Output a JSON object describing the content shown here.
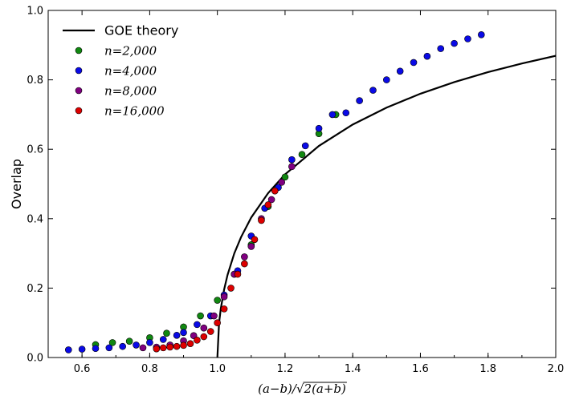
{
  "chart_data": {
    "type": "scatter",
    "title": "",
    "xlabel": "(a−b)/√2(a+b)",
    "ylabel": "Overlap",
    "xlim": [
      0.5,
      2.0
    ],
    "ylim": [
      0.0,
      1.0
    ],
    "xticks": [
      "0.6",
      "0.8",
      "1.0",
      "1.2",
      "1.4",
      "1.6",
      "1.8",
      "2.0"
    ],
    "yticks": [
      "0.0",
      "0.2",
      "0.4",
      "0.6",
      "0.8",
      "1.0"
    ],
    "legend_position": "top-left",
    "grid": false,
    "series": [
      {
        "name": "GOE theory",
        "kind": "line",
        "color": "#000000",
        "x": [
          1.0,
          1.005,
          1.01,
          1.02,
          1.03,
          1.05,
          1.07,
          1.1,
          1.15,
          1.2,
          1.3,
          1.4,
          1.5,
          1.6,
          1.7,
          1.8,
          1.9,
          2.0
        ],
        "y": [
          0.0,
          0.0995,
          0.1401,
          0.1961,
          0.2378,
          0.3,
          0.3469,
          0.4033,
          0.4736,
          0.5275,
          0.6096,
          0.6712,
          0.72,
          0.76,
          0.7935,
          0.8222,
          0.8472,
          0.8693
        ]
      },
      {
        "name": "n=2,000",
        "kind": "scatter",
        "color": "#118811",
        "x": [
          0.64,
          0.69,
          0.74,
          0.8,
          0.85,
          0.9,
          0.95,
          1.0,
          1.05,
          1.1,
          1.15,
          1.2,
          1.25,
          1.3,
          1.35
        ],
        "y": [
          0.037,
          0.043,
          0.047,
          0.057,
          0.07,
          0.088,
          0.12,
          0.165,
          0.24,
          0.325,
          0.435,
          0.52,
          0.585,
          0.645,
          0.7
        ]
      },
      {
        "name": "n=4,000",
        "kind": "scatter",
        "color": "#0a0ae6",
        "x": [
          0.56,
          0.6,
          0.64,
          0.68,
          0.72,
          0.76,
          0.8,
          0.84,
          0.88,
          0.9,
          0.94,
          0.98,
          1.02,
          1.06,
          1.1,
          1.14,
          1.18,
          1.22,
          1.26,
          1.3,
          1.34,
          1.38,
          1.42,
          1.46,
          1.5,
          1.54,
          1.58,
          1.62,
          1.66,
          1.7,
          1.74,
          1.78
        ],
        "y": [
          0.022,
          0.024,
          0.026,
          0.028,
          0.032,
          0.036,
          0.043,
          0.052,
          0.064,
          0.072,
          0.095,
          0.12,
          0.18,
          0.25,
          0.35,
          0.43,
          0.49,
          0.57,
          0.61,
          0.66,
          0.7,
          0.705,
          0.74,
          0.77,
          0.8,
          0.825,
          0.85,
          0.868,
          0.89,
          0.905,
          0.918,
          0.93
        ]
      },
      {
        "name": "n=8,000",
        "kind": "scatter",
        "color": "#800080",
        "x": [
          0.78,
          0.82,
          0.86,
          0.9,
          0.93,
          0.96,
          0.99,
          1.02,
          1.05,
          1.08,
          1.1,
          1.13,
          1.16,
          1.19,
          1.22
        ],
        "y": [
          0.028,
          0.03,
          0.036,
          0.048,
          0.063,
          0.085,
          0.12,
          0.175,
          0.24,
          0.29,
          0.32,
          0.4,
          0.455,
          0.505,
          0.55
        ]
      },
      {
        "name": "n=16,000",
        "kind": "scatter",
        "color": "#dd0000",
        "x": [
          0.82,
          0.84,
          0.86,
          0.88,
          0.9,
          0.92,
          0.94,
          0.96,
          0.98,
          1.0,
          1.02,
          1.04,
          1.06,
          1.08,
          1.11,
          1.13,
          1.15,
          1.17
        ],
        "y": [
          0.025,
          0.028,
          0.03,
          0.032,
          0.035,
          0.04,
          0.05,
          0.06,
          0.075,
          0.1,
          0.14,
          0.2,
          0.24,
          0.27,
          0.34,
          0.395,
          0.44,
          0.48
        ]
      }
    ]
  }
}
